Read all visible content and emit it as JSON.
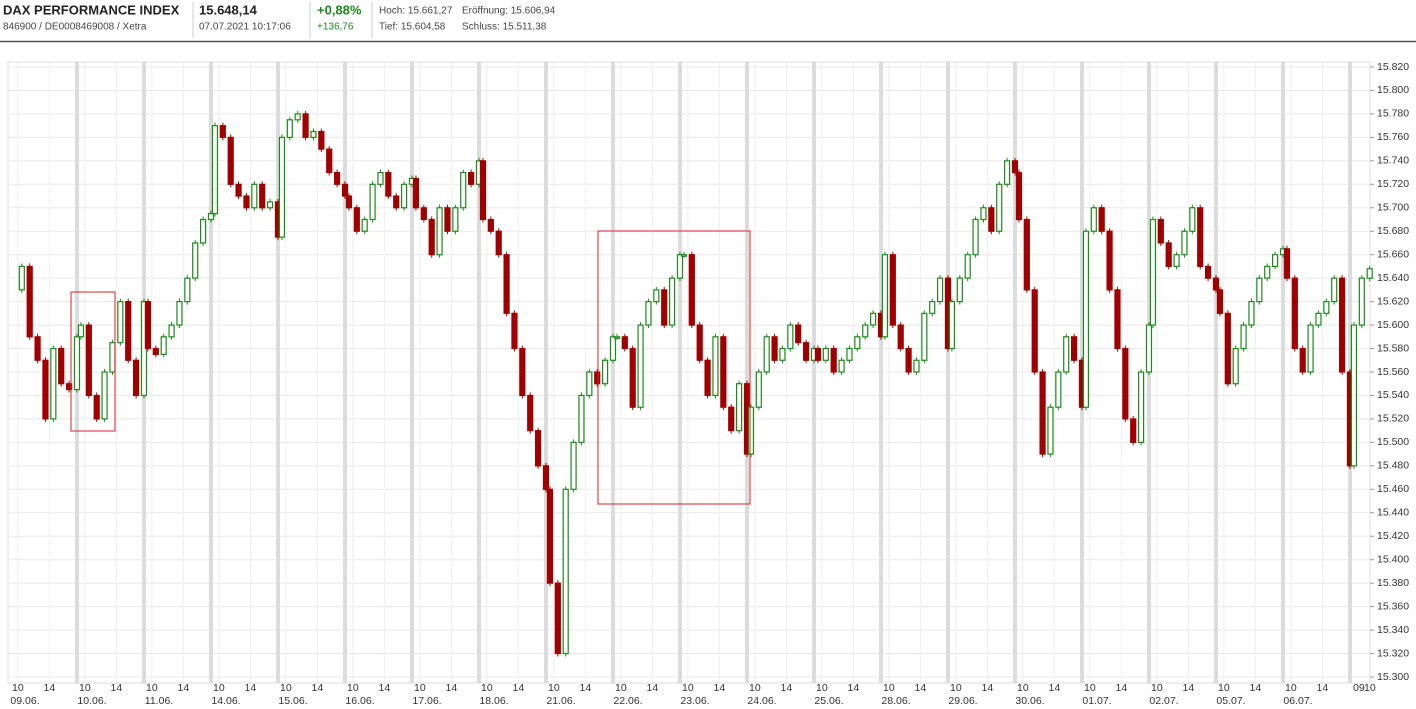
{
  "header": {
    "name": "DAX PERFORMANCE INDEX",
    "ids": "846900 / DE0008469008 / Xetra",
    "price": "15.648,14",
    "timestamp": "07.07.2021 10:17:06",
    "change_pct": "+0,88%",
    "change_abs": "+136,76",
    "high": "Hoch: 15.661,27",
    "open": "Eröffnung: 15.606,94",
    "low": "Tief: 15.604,58",
    "close": "Schluss: 15.511,38"
  },
  "chart_data": {
    "type": "candlestick",
    "up_color": "#1a8a1a",
    "down_color": "#a00000",
    "grid": true,
    "days": [
      "09.06.",
      "10.06.",
      "11.06.",
      "14.06.",
      "15.06.",
      "16.06.",
      "17.06.",
      "18.06.",
      "21.06.",
      "22.06.",
      "23.06.",
      "24.06.",
      "25.06.",
      "28.06.",
      "29.06.",
      "30.06.",
      "01.07.",
      "02.07.",
      "05.07.",
      "06.07."
    ],
    "hour_labels": [
      "10",
      "14"
    ],
    "last_day_hours": [
      "09",
      "10"
    ],
    "values": [
      [
        15630,
        15650,
        15590,
        15570,
        15520,
        15580,
        15550,
        15545,
        15590
      ],
      [
        15600,
        15540,
        15520,
        15560,
        15585,
        15620,
        15570,
        15540,
        15620
      ],
      [
        15580,
        15575,
        15590,
        15600,
        15620,
        15640,
        15670,
        15690,
        15695
      ],
      [
        15770,
        15760,
        15720,
        15710,
        15700,
        15720,
        15700,
        15705,
        15675
      ],
      [
        15760,
        15775,
        15780,
        15760,
        15765,
        15750,
        15730,
        15720,
        15710
      ],
      [
        15700,
        15680,
        15690,
        15720,
        15730,
        15710,
        15700,
        15720,
        15725
      ],
      [
        15700,
        15690,
        15660,
        15700,
        15680,
        15700,
        15730,
        15720,
        15740
      ],
      [
        15690,
        15680,
        15660,
        15610,
        15580,
        15540,
        15510,
        15480,
        15460
      ],
      [
        15380,
        15320,
        15460,
        15500,
        15540,
        15560,
        15550,
        15570,
        15590
      ],
      [
        15590,
        15580,
        15530,
        15600,
        15620,
        15630,
        15600,
        15640,
        15660
      ],
      [
        15660,
        15600,
        15570,
        15540,
        15590,
        15530,
        15510,
        15550,
        15490
      ],
      [
        15530,
        15560,
        15590,
        15570,
        15580,
        15600,
        15585,
        15570,
        15580
      ],
      [
        15570,
        15580,
        15560,
        15570,
        15580,
        15590,
        15600,
        15610,
        15590
      ],
      [
        15660,
        15600,
        15580,
        15560,
        15570,
        15610,
        15620,
        15640,
        15580
      ],
      [
        15620,
        15640,
        15660,
        15690,
        15700,
        15680,
        15720,
        15740,
        15730
      ],
      [
        15690,
        15630,
        15560,
        15490,
        15530,
        15560,
        15590,
        15570,
        15530
      ],
      [
        15680,
        15700,
        15680,
        15630,
        15580,
        15520,
        15500,
        15560,
        15600
      ],
      [
        15690,
        15670,
        15650,
        15660,
        15680,
        15700,
        15650,
        15640,
        15630
      ],
      [
        15610,
        15550,
        15580,
        15600,
        15620,
        15640,
        15650,
        15660,
        15665
      ],
      [
        15640,
        15580,
        15560,
        15600,
        15610,
        15620,
        15640,
        15560,
        15480
      ],
      [
        15600,
        15640,
        15648
      ]
    ],
    "ylim": [
      15300,
      15820
    ],
    "yticks": [
      {
        "value": 15300,
        "label": "15.300"
      },
      {
        "value": 15320,
        "label": "15.320"
      },
      {
        "value": 15340,
        "label": "15.340"
      },
      {
        "value": 15360,
        "label": "15.360"
      },
      {
        "value": 15380,
        "label": "15.380"
      },
      {
        "value": 15400,
        "label": "15.400"
      },
      {
        "value": 15420,
        "label": "15.420"
      },
      {
        "value": 15440,
        "label": "15.440"
      },
      {
        "value": 15460,
        "label": "15.460"
      },
      {
        "value": 15480,
        "label": "15.480"
      },
      {
        "value": 15500,
        "label": "15.500"
      },
      {
        "value": 15520,
        "label": "15.520"
      },
      {
        "value": 15540,
        "label": "15.540"
      },
      {
        "value": 15560,
        "label": "15.560"
      },
      {
        "value": 15580,
        "label": "15.580"
      },
      {
        "value": 15600,
        "label": "15.600"
      },
      {
        "value": 15620,
        "label": "15.620"
      },
      {
        "value": 15640,
        "label": "15.640"
      },
      {
        "value": 15660,
        "label": "15.660"
      },
      {
        "value": 15680,
        "label": "15.680"
      },
      {
        "value": 15700,
        "label": "15.700"
      },
      {
        "value": 15720,
        "label": "15.720"
      },
      {
        "value": 15740,
        "label": "15.740"
      },
      {
        "value": 15760,
        "label": "15.760"
      },
      {
        "value": 15780,
        "label": "15.780"
      },
      {
        "value": 15800,
        "label": "15.800"
      },
      {
        "value": 15820,
        "label": "15.820"
      }
    ]
  }
}
